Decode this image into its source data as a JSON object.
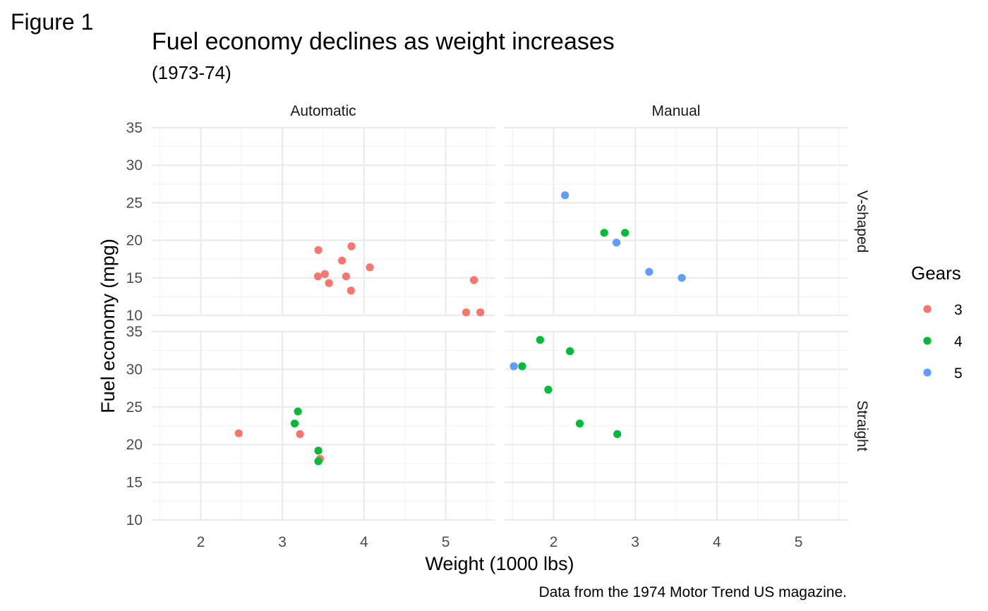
{
  "figure_label": "Figure 1",
  "chart_data": {
    "type": "scatter",
    "title": "Fuel economy declines as weight increases",
    "subtitle": "(1973-74)",
    "caption": "Data from the 1974 Motor Trend US magazine.",
    "xlabel": "Weight (1000 lbs)",
    "ylabel": "Fuel economy (mpg)",
    "xlim": [
      1.4,
      5.6
    ],
    "ylim": [
      10,
      35
    ],
    "x_ticks": [
      2,
      3,
      4,
      5
    ],
    "y_ticks": [
      10,
      15,
      20,
      25,
      30,
      35
    ],
    "grid": true,
    "facet_columns": [
      "Automatic",
      "Manual"
    ],
    "facet_rows": [
      "V-shaped",
      "Straight"
    ],
    "legend": {
      "title": "Gears",
      "placement": "right",
      "items": [
        {
          "label": "3",
          "color": "#F8766D"
        },
        {
          "label": "4",
          "color": "#00BA38"
        },
        {
          "label": "5",
          "color": "#619CFF"
        }
      ]
    },
    "panels": [
      {
        "column": "Automatic",
        "row": "V-shaped",
        "points": [
          {
            "x": 3.44,
            "y": 18.7,
            "gear": "3"
          },
          {
            "x": 3.57,
            "y": 14.3,
            "gear": "3"
          },
          {
            "x": 4.07,
            "y": 16.4,
            "gear": "3"
          },
          {
            "x": 3.73,
            "y": 17.3,
            "gear": "3"
          },
          {
            "x": 3.78,
            "y": 15.2,
            "gear": "3"
          },
          {
            "x": 5.25,
            "y": 10.4,
            "gear": "3"
          },
          {
            "x": 5.424,
            "y": 10.4,
            "gear": "3"
          },
          {
            "x": 5.345,
            "y": 14.7,
            "gear": "3"
          },
          {
            "x": 3.52,
            "y": 15.5,
            "gear": "3"
          },
          {
            "x": 3.435,
            "y": 15.2,
            "gear": "3"
          },
          {
            "x": 3.84,
            "y": 13.3,
            "gear": "3"
          },
          {
            "x": 3.845,
            "y": 19.2,
            "gear": "3"
          }
        ]
      },
      {
        "column": "Manual",
        "row": "V-shaped",
        "points": [
          {
            "x": 2.62,
            "y": 21.0,
            "gear": "4"
          },
          {
            "x": 2.875,
            "y": 21.0,
            "gear": "4"
          },
          {
            "x": 2.14,
            "y": 26.0,
            "gear": "5"
          },
          {
            "x": 3.17,
            "y": 15.8,
            "gear": "5"
          },
          {
            "x": 2.77,
            "y": 19.7,
            "gear": "5"
          },
          {
            "x": 3.57,
            "y": 15.0,
            "gear": "5"
          }
        ]
      },
      {
        "column": "Automatic",
        "row": "Straight",
        "points": [
          {
            "x": 3.215,
            "y": 21.4,
            "gear": "3"
          },
          {
            "x": 3.46,
            "y": 18.1,
            "gear": "3"
          },
          {
            "x": 2.465,
            "y": 21.5,
            "gear": "3"
          },
          {
            "x": 3.19,
            "y": 24.4,
            "gear": "4"
          },
          {
            "x": 3.15,
            "y": 22.8,
            "gear": "4"
          },
          {
            "x": 3.44,
            "y": 19.2,
            "gear": "4"
          },
          {
            "x": 3.44,
            "y": 17.8,
            "gear": "4"
          }
        ]
      },
      {
        "column": "Manual",
        "row": "Straight",
        "points": [
          {
            "x": 2.32,
            "y": 22.8,
            "gear": "4"
          },
          {
            "x": 2.2,
            "y": 32.4,
            "gear": "4"
          },
          {
            "x": 1.615,
            "y": 30.4,
            "gear": "4"
          },
          {
            "x": 1.835,
            "y": 33.9,
            "gear": "4"
          },
          {
            "x": 1.935,
            "y": 27.3,
            "gear": "4"
          },
          {
            "x": 2.78,
            "y": 21.4,
            "gear": "4"
          },
          {
            "x": 1.513,
            "y": 30.4,
            "gear": "5"
          }
        ]
      }
    ]
  }
}
